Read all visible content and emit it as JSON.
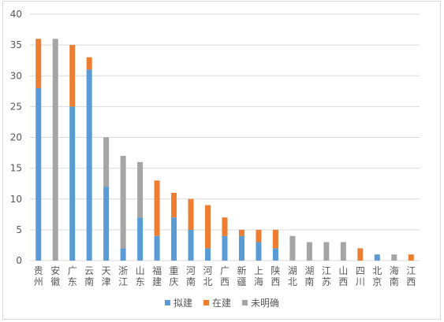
{
  "chart_data": {
    "type": "bar",
    "stacked": true,
    "categories": [
      "贵州",
      "安徽",
      "广东",
      "云南",
      "天津",
      "浙江",
      "山东",
      "福建",
      "重庆",
      "河南",
      "河北",
      "广西",
      "新疆",
      "上海",
      "陕西",
      "湖北",
      "湖南",
      "江苏",
      "山西",
      "四川",
      "北京",
      "海南",
      "江西"
    ],
    "series": [
      {
        "name": "拟建",
        "color": "#5b9bd5",
        "values": [
          28,
          0,
          25,
          31,
          12,
          2,
          7,
          4,
          7,
          5,
          2,
          4,
          4,
          3,
          2,
          0,
          0,
          0,
          0,
          0,
          1,
          0,
          0
        ]
      },
      {
        "name": "在建",
        "color": "#ed7d31",
        "values": [
          8,
          0,
          10,
          2,
          0,
          0,
          0,
          9,
          4,
          5,
          7,
          3,
          1,
          2,
          3,
          0,
          0,
          0,
          0,
          2,
          0,
          0,
          1
        ]
      },
      {
        "name": "未明确",
        "color": "#a5a5a5",
        "values": [
          0,
          36,
          0,
          0,
          8,
          15,
          9,
          0,
          0,
          0,
          0,
          0,
          0,
          0,
          0,
          4,
          3,
          3,
          3,
          0,
          0,
          1,
          0
        ]
      }
    ],
    "yticks": [
      "0",
      "5",
      "10",
      "15",
      "20",
      "25",
      "30",
      "35",
      "40"
    ],
    "ylim": [
      0,
      40
    ],
    "grid": true,
    "legend_position": "bottom"
  },
  "colors": {
    "axis_text": "#595959",
    "grid": "#d9d9d9"
  }
}
